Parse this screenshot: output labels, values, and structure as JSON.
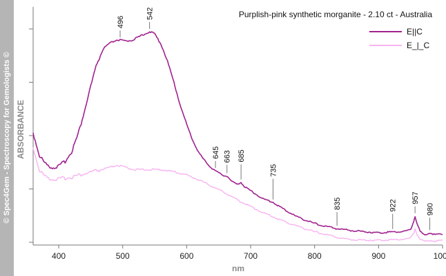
{
  "watermark": "© Spec4Gem - Spectroscopy for Gemologists ©",
  "chart_data": {
    "type": "line",
    "title": "Purplish-pink synthetic morganite - 2.10 ct - Australia",
    "xlabel": "nm",
    "ylabel": "ABSORBANCE",
    "xlim": [
      360,
      1000
    ],
    "ylim": [
      0,
      1
    ],
    "x_ticks": [
      400,
      500,
      600,
      700,
      800,
      900,
      1000
    ],
    "grid": false,
    "legend_position": "top-right",
    "peak_labels": [
      "496",
      "542",
      "645",
      "663",
      "685",
      "735",
      "835",
      "922",
      "957",
      "980"
    ],
    "series": [
      {
        "name": "E||C",
        "color": "#a0208e",
        "x": [
          360,
          370,
          380,
          390,
          400,
          410,
          420,
          430,
          440,
          450,
          460,
          470,
          480,
          490,
          496,
          505,
          515,
          525,
          535,
          542,
          550,
          560,
          570,
          580,
          590,
          600,
          610,
          620,
          630,
          640,
          645,
          655,
          663,
          670,
          678,
          685,
          690,
          700,
          710,
          720,
          735,
          750,
          770,
          790,
          810,
          835,
          860,
          880,
          900,
          922,
          935,
          945,
          950,
          955,
          957,
          960,
          965,
          972,
          980,
          990,
          1000
        ],
        "y": [
          0.52,
          0.41,
          0.37,
          0.355,
          0.36,
          0.385,
          0.43,
          0.51,
          0.62,
          0.74,
          0.85,
          0.92,
          0.945,
          0.96,
          0.96,
          0.955,
          0.96,
          0.975,
          0.99,
          1.0,
          0.99,
          0.94,
          0.86,
          0.76,
          0.65,
          0.56,
          0.48,
          0.42,
          0.38,
          0.35,
          0.34,
          0.32,
          0.315,
          0.29,
          0.275,
          0.285,
          0.265,
          0.245,
          0.225,
          0.205,
          0.19,
          0.16,
          0.125,
          0.1,
          0.08,
          0.065,
          0.055,
          0.05,
          0.045,
          0.05,
          0.05,
          0.055,
          0.06,
          0.1,
          0.125,
          0.09,
          0.05,
          0.035,
          0.045,
          0.035,
          0.04
        ]
      },
      {
        "name": "E_|_C",
        "color": "#f7b3f0",
        "x": [
          360,
          370,
          380,
          390,
          400,
          410,
          420,
          440,
          460,
          480,
          490,
          500,
          510,
          520,
          540,
          560,
          580,
          600,
          620,
          640,
          660,
          680,
          700,
          720,
          740,
          760,
          780,
          800,
          820,
          840,
          860,
          880,
          900,
          920,
          935,
          945,
          950,
          955,
          957,
          960,
          965,
          972,
          980,
          990,
          1000
        ],
        "y": [
          0.45,
          0.34,
          0.31,
          0.3,
          0.3,
          0.305,
          0.31,
          0.325,
          0.34,
          0.355,
          0.365,
          0.36,
          0.35,
          0.345,
          0.345,
          0.345,
          0.335,
          0.32,
          0.295,
          0.265,
          0.235,
          0.2,
          0.17,
          0.14,
          0.115,
          0.09,
          0.07,
          0.05,
          0.035,
          0.02,
          0.012,
          0.01,
          0.01,
          0.012,
          0.014,
          0.016,
          0.02,
          0.045,
          0.065,
          0.04,
          0.012,
          0.005,
          0.01,
          0.005,
          0.008
        ]
      }
    ]
  }
}
